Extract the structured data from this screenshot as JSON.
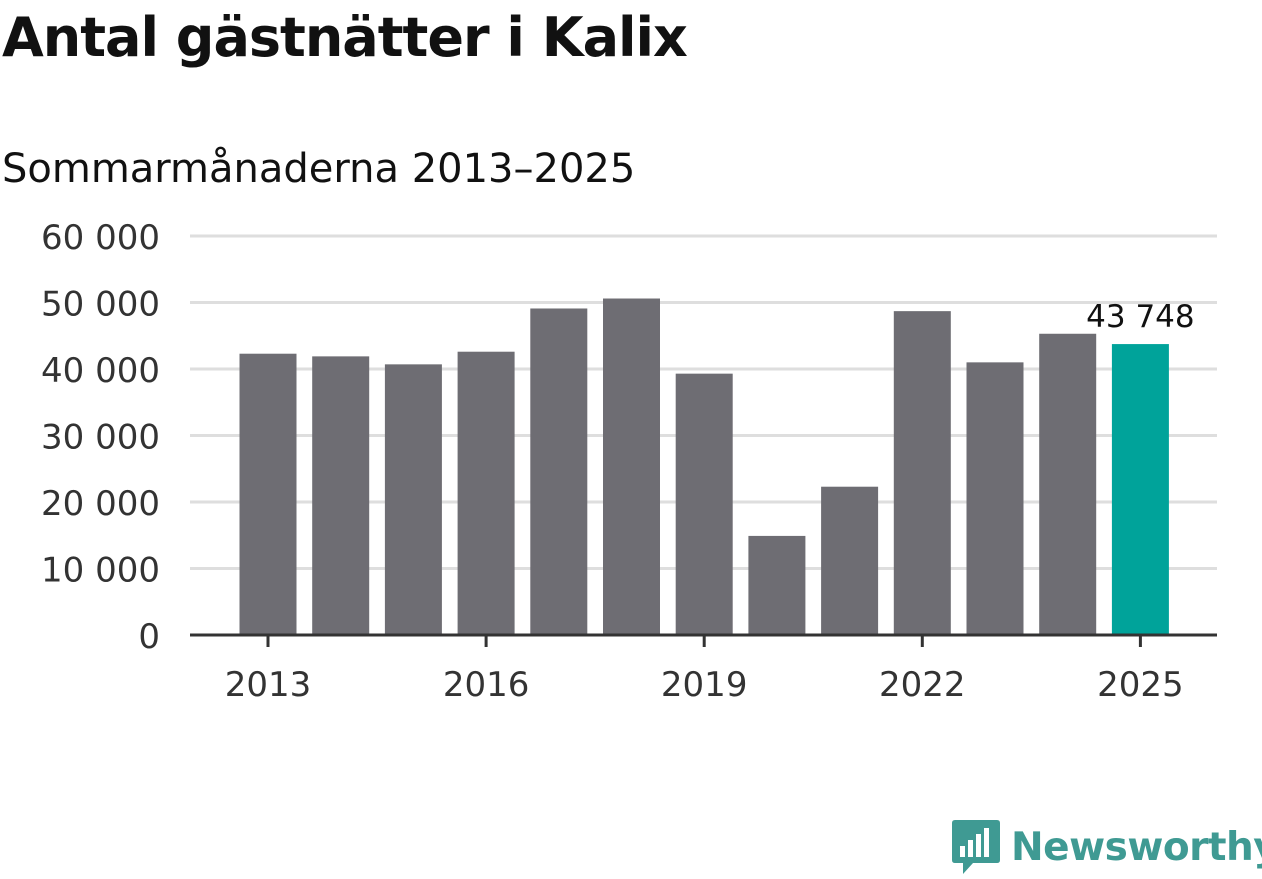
{
  "title": "Antal gästnätter i Kalix",
  "subtitle": "Sommarmånaderna 2013–2025",
  "brand": {
    "name": "Newsworthy"
  },
  "chart_data": {
    "type": "bar",
    "categories": [
      "2013",
      "2014",
      "2015",
      "2016",
      "2017",
      "2018",
      "2019",
      "2020",
      "2021",
      "2022",
      "2023",
      "2024",
      "2025"
    ],
    "values": [
      42300,
      41900,
      40700,
      42600,
      49100,
      50600,
      39300,
      14900,
      22300,
      48700,
      41000,
      45300,
      43748
    ],
    "highlight_index": 12,
    "highlight_label": "43 748",
    "ylim": [
      0,
      60000
    ],
    "yticks": [
      0,
      10000,
      20000,
      30000,
      40000,
      50000,
      60000
    ],
    "ytick_labels": [
      "0",
      "10 000",
      "20 000",
      "30 000",
      "40 000",
      "50 000",
      "60 000"
    ],
    "xtick_labels": [
      "2013",
      "2016",
      "2019",
      "2022",
      "2025"
    ],
    "xlabel": "",
    "ylabel": "",
    "grid": true,
    "colors": {
      "bar": "#6e6d73",
      "highlight": "#00a39a",
      "grid": "#dedede",
      "axis": "#333333",
      "brand": "#3f9a93"
    }
  }
}
